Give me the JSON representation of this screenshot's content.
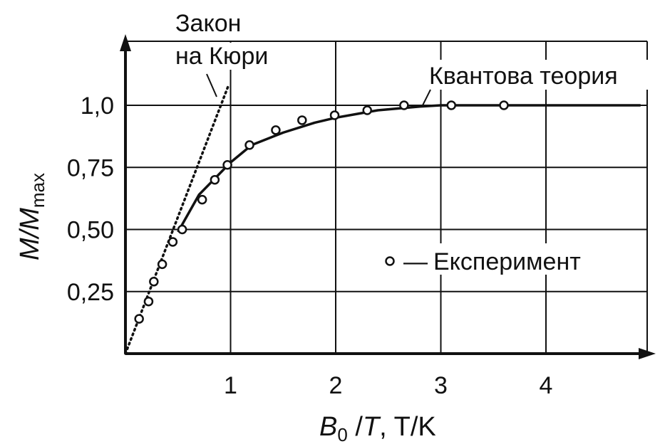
{
  "chart_data": {
    "type": "line",
    "x": {
      "label_var": "B",
      "label_sub": "0",
      "label_rest_var": "T",
      "label_units": ", T/K",
      "range": [
        0,
        5
      ],
      "ticks": [
        1,
        2,
        3,
        4
      ],
      "tick_labels": [
        "1",
        "2",
        "3",
        "4"
      ]
    },
    "y": {
      "label_var": "M/M",
      "label_sub": "max",
      "range": [
        0,
        1.25
      ],
      "ticks": [
        0.25,
        0.5,
        0.75,
        1.0
      ],
      "tick_labels": [
        "0,25",
        "0,50",
        "0,75",
        "1,0"
      ]
    },
    "grid": true,
    "series": [
      {
        "name": "Квантова теория",
        "style": "solid",
        "points": [
          [
            0.5,
            0.49
          ],
          [
            0.7,
            0.64
          ],
          [
            1.0,
            0.77
          ],
          [
            1.2,
            0.84
          ],
          [
            1.5,
            0.89
          ],
          [
            1.8,
            0.93
          ],
          [
            2.0,
            0.95
          ],
          [
            2.4,
            0.98
          ],
          [
            2.8,
            0.995
          ],
          [
            3.0,
            1.0
          ],
          [
            3.5,
            1.0
          ],
          [
            4.0,
            1.0
          ],
          [
            4.9,
            1.0
          ]
        ]
      },
      {
        "name": "Закон на Кюри",
        "style": "dotted",
        "points": [
          [
            0.0,
            0.0
          ],
          [
            0.98,
            1.08
          ]
        ]
      },
      {
        "name": "Експеримент",
        "style": "markers",
        "points": [
          [
            0.13,
            0.14
          ],
          [
            0.22,
            0.21
          ],
          [
            0.27,
            0.29
          ],
          [
            0.35,
            0.36
          ],
          [
            0.45,
            0.45
          ],
          [
            0.54,
            0.5
          ],
          [
            0.73,
            0.62
          ],
          [
            0.85,
            0.7
          ],
          [
            0.97,
            0.76
          ],
          [
            1.18,
            0.84
          ],
          [
            1.43,
            0.9
          ],
          [
            1.68,
            0.94
          ],
          [
            1.99,
            0.96
          ],
          [
            2.3,
            0.98
          ],
          [
            2.65,
            1.0
          ],
          [
            3.1,
            1.0
          ],
          [
            3.6,
            1.0
          ]
        ]
      }
    ],
    "annotations": {
      "curie_line1": "Закон",
      "curie_line2": "на Кюри",
      "quantum": "Квантова теория",
      "legend_sep": "—",
      "legend_text": "Експеримент"
    }
  }
}
